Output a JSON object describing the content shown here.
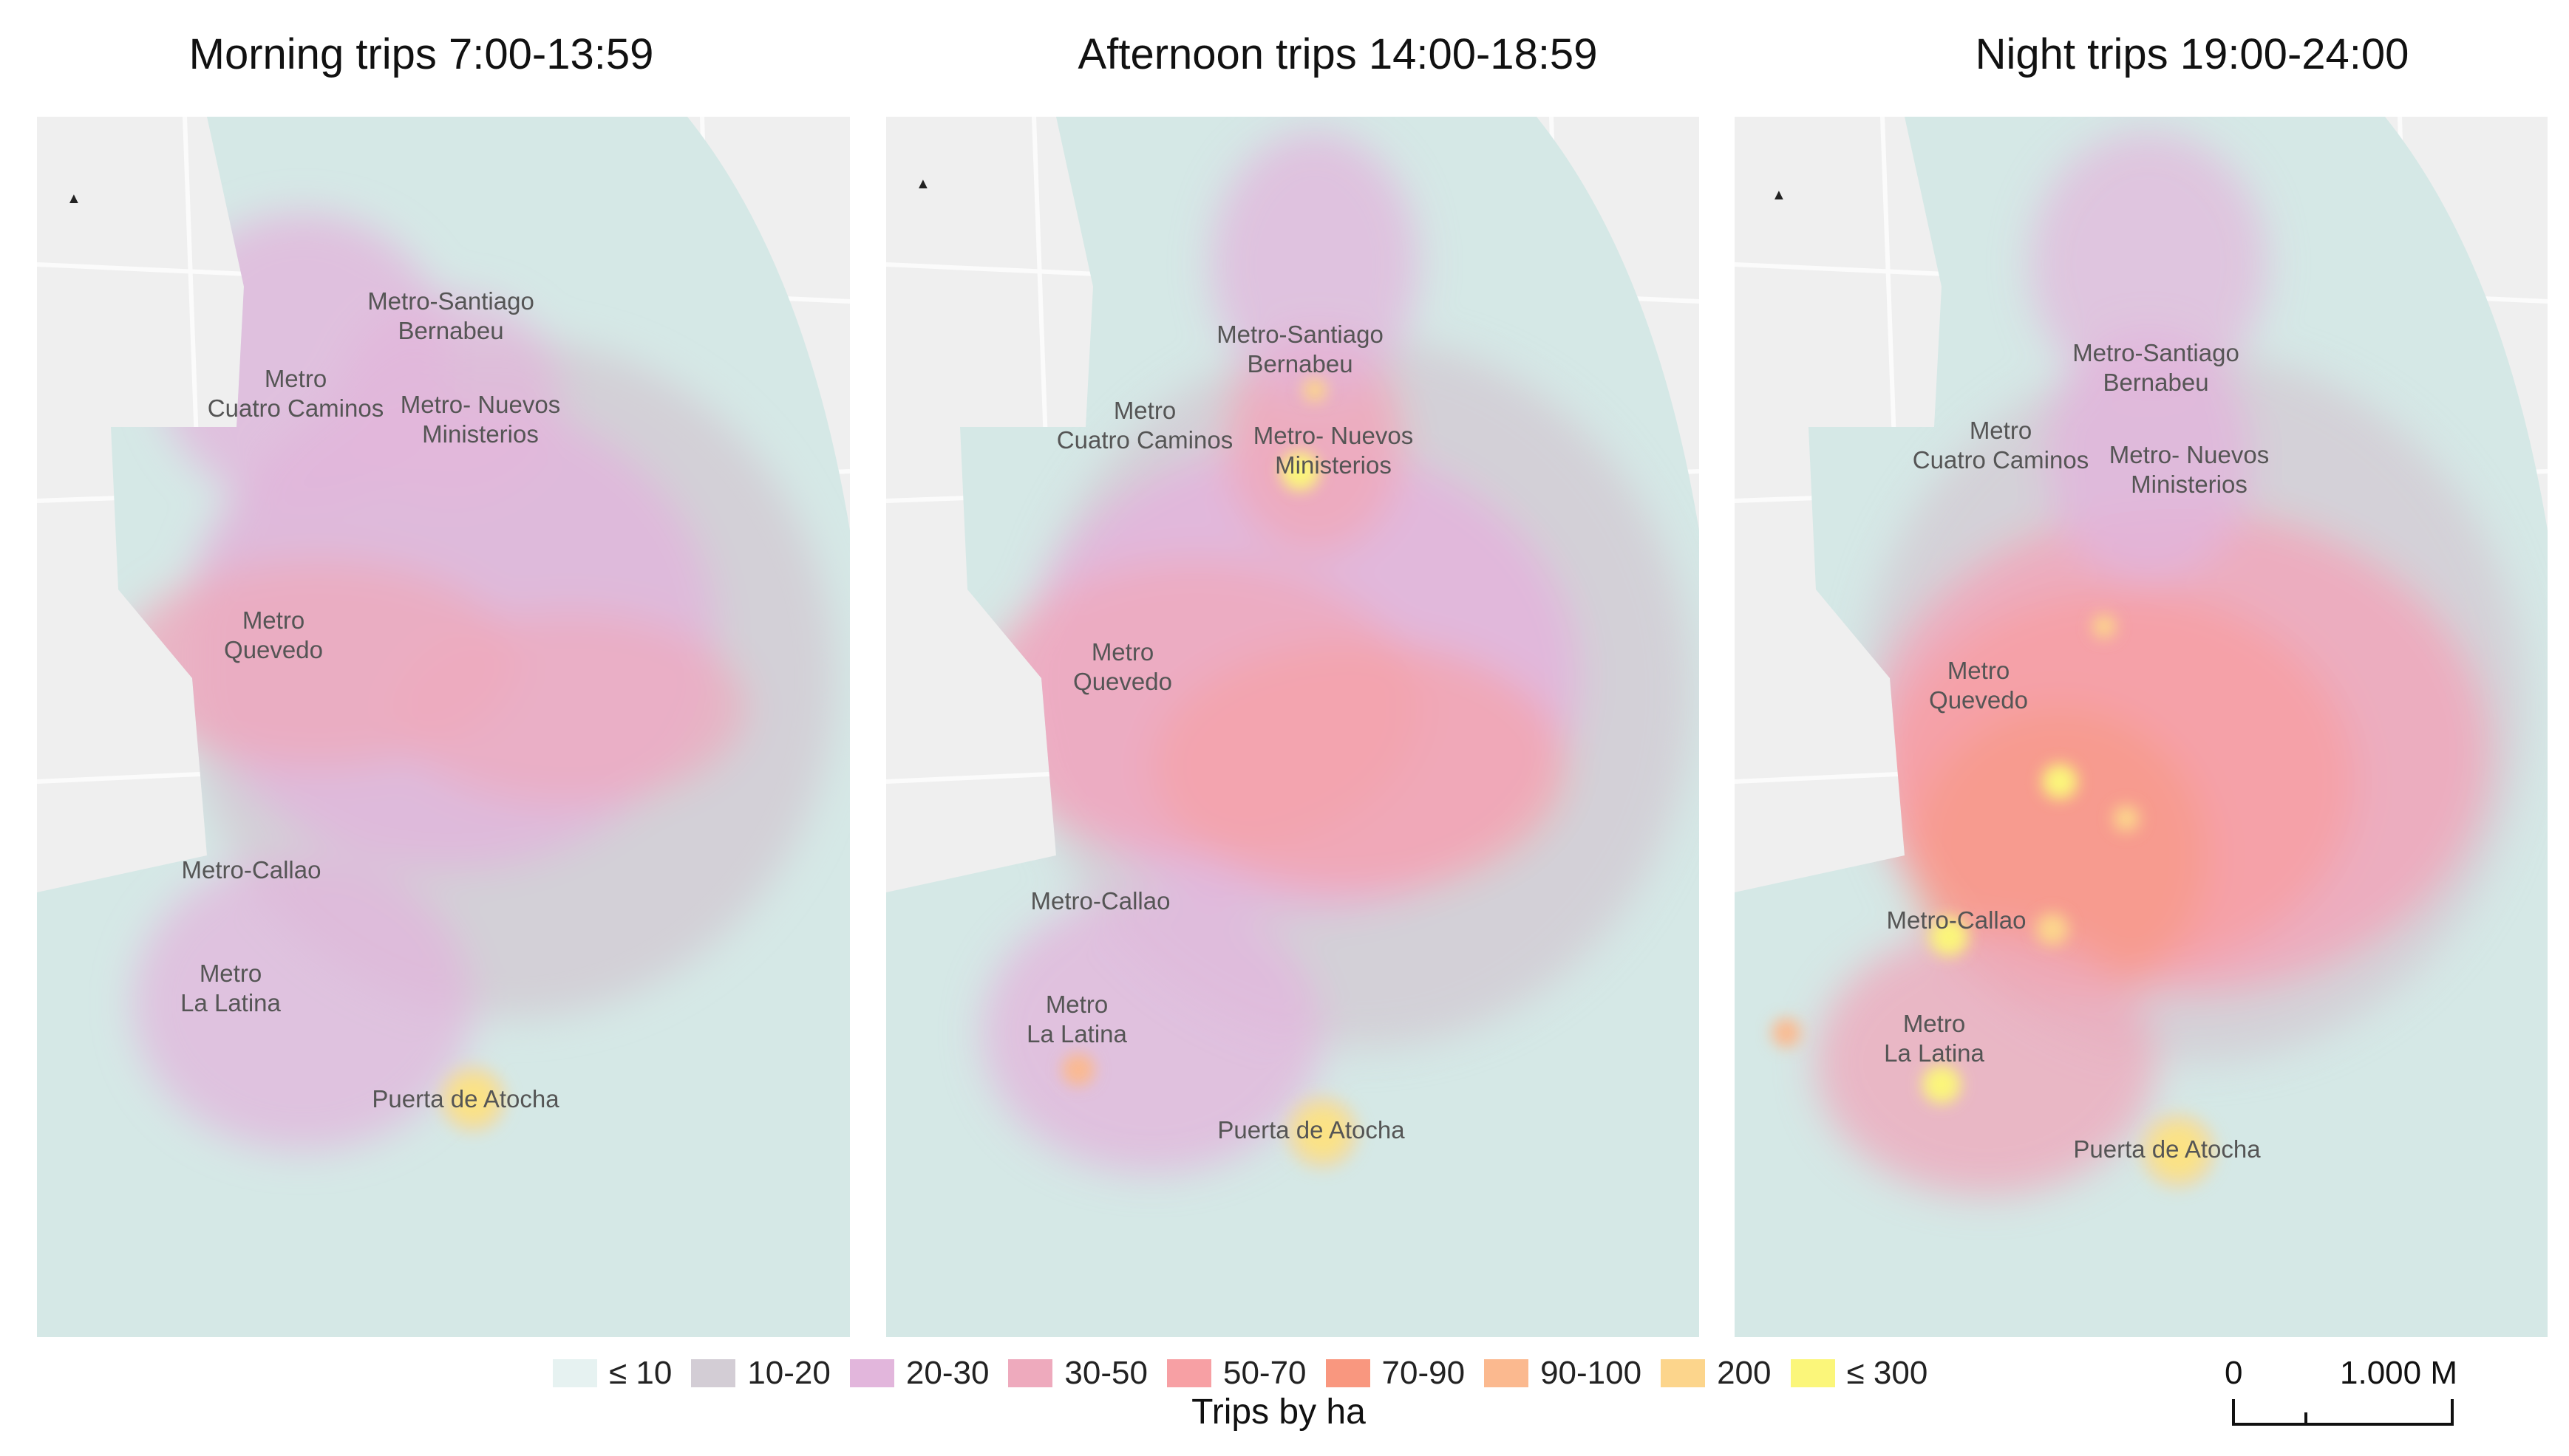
{
  "panels": [
    {
      "title": "Morning trips 7:00-13:59",
      "labels": {
        "santiago": "Metro-Santiago\nBernabeu",
        "cuatro": "Metro\nCuatro Caminos",
        "nuevos": "Metro- Nuevos\nMinisterios",
        "quevedo": "Metro\nQuevedo",
        "callao": "Metro-Callao",
        "latina": "Metro\nLa Latina",
        "atocha": "Puerta de Atocha"
      }
    },
    {
      "title": "Afternoon trips 14:00-18:59",
      "labels": {
        "santiago": "Metro-Santiago\nBernabeu",
        "cuatro": "Metro\nCuatro Caminos",
        "nuevos": "Metro- Nuevos\nMinisterios",
        "quevedo": "Metro\nQuevedo",
        "callao": "Metro-Callao",
        "latina": "Metro\nLa Latina",
        "atocha": "Puerta de Atocha"
      }
    },
    {
      "title": "Night trips 19:00-24:00",
      "labels": {
        "santiago": "Metro-Santiago\nBernabeu",
        "cuatro": "Metro\nCuatro Caminos",
        "nuevos": "Metro- Nuevos\nMinisterios",
        "quevedo": "Metro\nQuevedo",
        "callao": "Metro-Callao",
        "latina": "Metro\nLa Latina",
        "atocha": "Puerta de Atocha"
      }
    }
  ],
  "legend": {
    "title": "Trips by ha",
    "items": [
      {
        "label": "≤ 10",
        "color": "#e6f2f1"
      },
      {
        "label": "10-20",
        "color": "#d3cdd5"
      },
      {
        "label": "20-30",
        "color": "#e2b6dc"
      },
      {
        "label": "30-50",
        "color": "#eeaabd"
      },
      {
        "label": "50-70",
        "color": "#f7a0a4"
      },
      {
        "label": "70-90",
        "color": "#f9977f"
      },
      {
        "label": "90-100",
        "color": "#fbb98f"
      },
      {
        "label": "200",
        "color": "#fcd58c"
      },
      {
        "label": "≤ 300",
        "color": "#fbf67a"
      }
    ]
  },
  "scale_bar": {
    "start": "0",
    "end": "1.000 M"
  },
  "north_arrow": "north-arrow-icon"
}
